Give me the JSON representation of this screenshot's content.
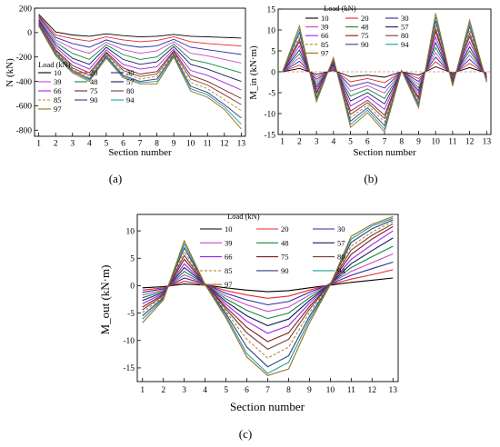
{
  "series_styles": [
    {
      "load": "10",
      "color": "#000000",
      "dash": ""
    },
    {
      "load": "20",
      "color": "#e8262a",
      "dash": ""
    },
    {
      "load": "30",
      "color": "#2b2b9b",
      "dash": ""
    },
    {
      "load": "39",
      "color": "#cc44cc",
      "dash": ""
    },
    {
      "load": "48",
      "color": "#0a8a3a",
      "dash": ""
    },
    {
      "load": "57",
      "color": "#1a1a5e",
      "dash": ""
    },
    {
      "load": "66",
      "color": "#a020f0",
      "dash": ""
    },
    {
      "load": "75",
      "color": "#7a1f1f",
      "dash": ""
    },
    {
      "load": "80",
      "color": "#7a3a3a",
      "dash": ""
    },
    {
      "load": "85",
      "color": "#b08a2a",
      "dash": "3,2"
    },
    {
      "load": "90",
      "color": "#3a3a80",
      "dash": ""
    },
    {
      "load": "94",
      "color": "#1aa0a0",
      "dash": ""
    },
    {
      "load": "97",
      "color": "#9a6a1a",
      "dash": ""
    }
  ],
  "chart_data": [
    {
      "type": "line",
      "panel": "(a)",
      "xlabel": "Section number",
      "ylabel": "N (kN)",
      "legend_title": "Load (kN)",
      "ylim": [
        -850,
        200
      ],
      "yticks": [
        200,
        0,
        -200,
        -400,
        -600,
        -800
      ],
      "x": [
        1,
        2,
        3,
        4,
        5,
        6,
        7,
        8,
        9,
        10,
        11,
        12,
        13
      ],
      "series": [
        {
          "name": "10",
          "values": [
            150,
            5,
            -20,
            -30,
            -10,
            -25,
            -35,
            -30,
            -15,
            -30,
            -35,
            -40,
            -45
          ]
        },
        {
          "name": "20",
          "values": [
            140,
            -20,
            -50,
            -70,
            -35,
            -60,
            -75,
            -65,
            -35,
            -75,
            -90,
            -100,
            -110
          ]
        },
        {
          "name": "30",
          "values": [
            130,
            -40,
            -90,
            -120,
            -60,
            -100,
            -120,
            -110,
            -55,
            -120,
            -140,
            -160,
            -180
          ]
        },
        {
          "name": "39",
          "values": [
            120,
            -60,
            -130,
            -170,
            -80,
            -140,
            -170,
            -150,
            -75,
            -170,
            -190,
            -220,
            -250
          ]
        },
        {
          "name": "48",
          "values": [
            110,
            -80,
            -170,
            -220,
            -100,
            -180,
            -220,
            -200,
            -95,
            -220,
            -250,
            -290,
            -330
          ]
        },
        {
          "name": "57",
          "values": [
            100,
            -100,
            -210,
            -260,
            -120,
            -220,
            -260,
            -240,
            -115,
            -260,
            -300,
            -350,
            -400
          ]
        },
        {
          "name": "66",
          "values": [
            90,
            -120,
            -240,
            -300,
            -140,
            -260,
            -300,
            -280,
            -135,
            -310,
            -350,
            -410,
            -470
          ]
        },
        {
          "name": "75",
          "values": [
            80,
            -140,
            -270,
            -330,
            -160,
            -290,
            -340,
            -320,
            -150,
            -350,
            -400,
            -470,
            -540
          ]
        },
        {
          "name": "80",
          "values": [
            75,
            -150,
            -290,
            -350,
            -170,
            -310,
            -360,
            -340,
            -160,
            -380,
            -430,
            -510,
            -590
          ]
        },
        {
          "name": "85",
          "values": [
            70,
            -160,
            -300,
            -370,
            -180,
            -330,
            -380,
            -360,
            -170,
            -410,
            -460,
            -550,
            -640
          ]
        },
        {
          "name": "90",
          "values": [
            65,
            -170,
            -310,
            -380,
            -190,
            -350,
            -400,
            -380,
            -180,
            -440,
            -490,
            -590,
            -700
          ]
        },
        {
          "name": "94",
          "values": [
            60,
            -180,
            -320,
            -390,
            -200,
            -360,
            -410,
            -400,
            -190,
            -460,
            -510,
            -610,
            -750
          ]
        },
        {
          "name": "97",
          "values": [
            55,
            -190,
            -330,
            -400,
            -210,
            -370,
            -420,
            -420,
            -200,
            -480,
            -530,
            -630,
            -790
          ]
        }
      ]
    },
    {
      "type": "line",
      "panel": "(b)",
      "xlabel": "Section number",
      "ylabel": "M_in (kN·m)",
      "legend_title": "Load (kN)",
      "ylim": [
        -15,
        15
      ],
      "yticks": [
        15,
        10,
        5,
        0,
        -5,
        -10,
        -15
      ],
      "x": [
        1,
        2,
        3,
        4,
        5,
        6,
        7,
        8,
        9,
        10,
        11,
        12,
        13
      ],
      "series": [
        {
          "name": "10",
          "values": [
            0,
            0.8,
            -0.6,
            0.3,
            -1.2,
            -0.8,
            -1.3,
            0,
            -0.8,
            1.2,
            -0.3,
            1.0,
            -0.3
          ]
        },
        {
          "name": "20",
          "values": [
            0,
            1.6,
            -1.2,
            0.5,
            -2.4,
            -1.6,
            -2.6,
            0,
            -1.6,
            2.4,
            -0.6,
            2.0,
            -0.6
          ]
        },
        {
          "name": "30",
          "values": [
            0,
            2.5,
            -1.8,
            0.8,
            -3.5,
            -2.5,
            -3.9,
            0.1,
            -2.3,
            3.5,
            -0.9,
            3.0,
            -0.8
          ]
        },
        {
          "name": "39",
          "values": [
            0,
            3.4,
            -2.4,
            1.1,
            -4.6,
            -3.3,
            -5.1,
            0.1,
            -3.0,
            4.6,
            -1.2,
            4.0,
            -1.0
          ]
        },
        {
          "name": "48",
          "values": [
            0,
            4.3,
            -3.0,
            1.4,
            -5.8,
            -4.1,
            -6.4,
            0.1,
            -3.8,
            5.8,
            -1.5,
            5.0,
            -1.2
          ]
        },
        {
          "name": "57",
          "values": [
            0,
            5.2,
            -3.6,
            1.7,
            -7.0,
            -5.0,
            -7.7,
            0.1,
            -4.5,
            7.0,
            -1.8,
            6.0,
            -1.4
          ]
        },
        {
          "name": "66",
          "values": [
            0,
            6.2,
            -4.2,
            2.0,
            -8.2,
            -5.9,
            -9.0,
            0.2,
            -5.2,
            8.3,
            -2.1,
            7.2,
            -1.6
          ]
        },
        {
          "name": "75",
          "values": [
            0,
            7.2,
            -4.8,
            2.3,
            -9.4,
            -6.8,
            -10.4,
            0.2,
            -6.0,
            9.6,
            -2.4,
            8.4,
            -1.8
          ]
        },
        {
          "name": "80",
          "values": [
            0,
            7.8,
            -5.2,
            2.5,
            -10.2,
            -7.4,
            -11.2,
            0.2,
            -6.5,
            10.4,
            -2.6,
            9.2,
            -2.0
          ]
        },
        {
          "name": "85",
          "values": [
            0,
            8.6,
            -5.7,
            2.8,
            -11.0,
            -8.0,
            -12.0,
            0.2,
            -7.0,
            11.3,
            -2.8,
            10.0,
            -2.1
          ]
        },
        {
          "name": "90",
          "values": [
            0,
            9.4,
            -6.2,
            3.0,
            -11.8,
            -8.6,
            -12.9,
            0.3,
            -7.6,
            12.2,
            -3.0,
            10.8,
            -2.2
          ]
        },
        {
          "name": "94",
          "values": [
            0,
            10.2,
            -6.7,
            3.2,
            -12.6,
            -9.2,
            -13.7,
            0.3,
            -8.1,
            13.1,
            -3.2,
            11.6,
            -2.4
          ]
        },
        {
          "name": "97",
          "values": [
            0,
            11.0,
            -7.2,
            3.4,
            -13.3,
            -9.8,
            -14.4,
            0.3,
            -8.6,
            14.0,
            -3.4,
            12.4,
            -2.5
          ]
        }
      ]
    },
    {
      "type": "line",
      "panel": "(c)",
      "xlabel": "Section number",
      "ylabel": "M_out (kN·m)",
      "legend_title": "Load (kN)",
      "ylim": [
        -17.5,
        13
      ],
      "yticks": [
        10,
        5,
        0,
        -5,
        -10,
        -15
      ],
      "x": [
        1,
        2,
        3,
        4,
        5,
        6,
        7,
        8,
        9,
        10,
        11,
        12,
        13
      ],
      "series": [
        {
          "name": "10",
          "values": [
            -0.4,
            -0.2,
            0.3,
            0.1,
            -0.4,
            -0.8,
            -1.1,
            -0.9,
            -0.4,
            0.1,
            0.6,
            1.0,
            1.4
          ]
        },
        {
          "name": "20",
          "values": [
            -0.8,
            -0.4,
            0.8,
            0.2,
            -0.9,
            -1.7,
            -2.3,
            -1.9,
            -0.8,
            0.2,
            1.2,
            2.0,
            2.9
          ]
        },
        {
          "name": "30",
          "values": [
            -1.2,
            -0.6,
            1.4,
            0.3,
            -1.4,
            -2.6,
            -3.5,
            -2.9,
            -1.2,
            0.3,
            1.9,
            3.1,
            4.3
          ]
        },
        {
          "name": "39",
          "values": [
            -1.7,
            -0.8,
            2.0,
            0.3,
            -1.9,
            -3.5,
            -4.7,
            -3.9,
            -1.7,
            0.4,
            2.6,
            4.2,
            5.8
          ]
        },
        {
          "name": "48",
          "values": [
            -2.2,
            -1.0,
            2.6,
            0.3,
            -2.4,
            -4.5,
            -6.0,
            -5.0,
            -2.2,
            0.4,
            3.3,
            5.3,
            7.2
          ]
        },
        {
          "name": "57",
          "values": [
            -2.7,
            -1.2,
            3.3,
            0.3,
            -2.9,
            -5.5,
            -7.3,
            -6.1,
            -2.7,
            0.4,
            4.0,
            6.4,
            8.7
          ]
        },
        {
          "name": "66",
          "values": [
            -3.3,
            -1.4,
            4.0,
            0.3,
            -3.4,
            -6.5,
            -8.7,
            -7.3,
            -3.2,
            0.4,
            4.8,
            7.5,
            10.0
          ]
        },
        {
          "name": "75",
          "values": [
            -3.9,
            -1.6,
            4.8,
            0.3,
            -3.9,
            -7.6,
            -10.2,
            -8.6,
            -3.8,
            0.4,
            5.7,
            8.5,
            10.8
          ]
        },
        {
          "name": "80",
          "values": [
            -4.4,
            -1.8,
            5.5,
            0.3,
            -4.3,
            -8.6,
            -11.6,
            -9.8,
            -4.3,
            0.4,
            6.5,
            9.2,
            11.3
          ]
        },
        {
          "name": "85",
          "values": [
            -4.9,
            -2.0,
            6.2,
            0.2,
            -4.7,
            -9.8,
            -13.2,
            -11.2,
            -4.9,
            0.3,
            7.2,
            9.8,
            11.7
          ]
        },
        {
          "name": "90",
          "values": [
            -5.5,
            -2.2,
            6.9,
            0.2,
            -5.1,
            -11.2,
            -14.8,
            -12.8,
            -5.6,
            0.3,
            7.9,
            10.4,
            12.0
          ]
        },
        {
          "name": "94",
          "values": [
            -6.1,
            -2.4,
            7.6,
            0.2,
            -5.5,
            -12.4,
            -16.0,
            -14.0,
            -6.2,
            0.3,
            8.5,
            10.9,
            12.3
          ]
        },
        {
          "name": "97",
          "values": [
            -6.8,
            -2.6,
            8.2,
            0.2,
            -5.9,
            -13.0,
            -16.4,
            -15.2,
            -6.8,
            0.2,
            9.0,
            11.2,
            12.6
          ]
        }
      ]
    }
  ]
}
